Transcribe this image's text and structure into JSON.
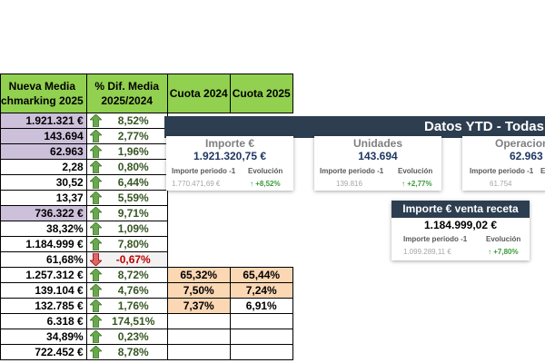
{
  "table": {
    "headers": {
      "media": [
        "Nueva Media",
        "chmarking 2025"
      ],
      "dif": [
        "% Dif. Media",
        "2025/2024"
      ],
      "cuota2024": "Cuota 2024",
      "cuota2025": "Cuota 2025"
    },
    "rows": [
      {
        "media": "1.921.321 €",
        "lav": true,
        "dif": "8,52%",
        "trend": "up",
        "c24": "",
        "c25": ""
      },
      {
        "media": "143.694",
        "lav": true,
        "dif": "2,77%",
        "trend": "up",
        "c24": "",
        "c25": ""
      },
      {
        "media": "62.963",
        "lav": true,
        "dif": "1,96%",
        "trend": "up",
        "c24": "",
        "c25": ""
      },
      {
        "media": "2,28",
        "lav": false,
        "dif": "0,80%",
        "trend": "up",
        "c24": "",
        "c25": ""
      },
      {
        "media": "30,52",
        "lav": false,
        "dif": "6,44%",
        "trend": "up",
        "c24": "",
        "c25": ""
      },
      {
        "media": "13,37",
        "lav": false,
        "dif": "5,59%",
        "trend": "up",
        "c24": "",
        "c25": ""
      },
      {
        "media": "736.322 €",
        "lav": true,
        "dif": "9,71%",
        "trend": "up",
        "c24": "",
        "c25": ""
      },
      {
        "media": "38,32%",
        "lav": false,
        "dif": "1,09%",
        "trend": "up",
        "c24": "",
        "c25": ""
      },
      {
        "media": "1.184.999 €",
        "lav": false,
        "dif": "7,80%",
        "trend": "up",
        "c24": "",
        "c25": ""
      },
      {
        "media": "61,68%",
        "lav": false,
        "dif": "-0,67%",
        "trend": "down",
        "c24": "",
        "c25": ""
      },
      {
        "media": "1.257.312 €",
        "lav": false,
        "dif": "8,72%",
        "trend": "up",
        "c24": "65,32%",
        "c25": "65,44%",
        "p24": true,
        "p25": true
      },
      {
        "media": "139.104 €",
        "lav": false,
        "dif": "4,76%",
        "trend": "up",
        "c24": "7,50%",
        "c25": "7,24%",
        "p24": true,
        "p25": true
      },
      {
        "media": "132.785 €",
        "lav": false,
        "dif": "1,76%",
        "trend": "up",
        "c24": "7,37%",
        "c25": "6,91%",
        "p24": true,
        "p25": false
      },
      {
        "media": "6.318 €",
        "lav": false,
        "dif": "174,51%",
        "trend": "up",
        "c24": "",
        "c25": ""
      },
      {
        "media": "34,89%",
        "lav": false,
        "dif": "0,23%",
        "trend": "up",
        "c24": "",
        "c25": ""
      },
      {
        "media": "722.452 €",
        "lav": false,
        "dif": "8,78%",
        "trend": "up",
        "c24": "",
        "c25": ""
      }
    ]
  },
  "dashboard": {
    "banner_title": "Datos YTD - Todas",
    "importe": {
      "title": "Importe €",
      "value": "1.921.320,75 €",
      "period_label": "Importe periodo -1",
      "evol_label": "Evolución",
      "period_value": "1.770.471,69 €",
      "evol_value": "↑ +8,52%"
    },
    "unidades": {
      "title": "Unidades",
      "value": "143.694",
      "period_label": "Importe periodo -1",
      "evol_label": "Evolución",
      "period_value": "139.816",
      "evol_value": "↑ +2,77%"
    },
    "operaciones": {
      "title": "Operacion",
      "value": "62.963",
      "period_label": "Importe periodo -1",
      "evol_label": "E",
      "period_value": "61.754",
      "evol_value": ""
    },
    "receta": {
      "title": "Importe € venta receta",
      "value": "1.184.999,02 €",
      "period_label": "Importe periodo -1",
      "evol_label": "Evolución",
      "period_value": "1.099.289,11 €",
      "evol_value": "↑ +7,80%"
    }
  },
  "colors": {
    "header_green": "#92d050",
    "lavender": "#ccc0da",
    "peach": "#fbd7b4",
    "arrow_up": "#6aa84f",
    "arrow_down": "#e06666",
    "banner": "#2d3e50"
  }
}
